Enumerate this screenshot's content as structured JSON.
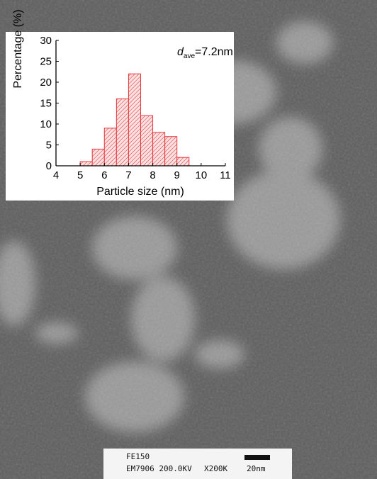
{
  "chart_data": {
    "type": "histogram",
    "bins": [
      5,
      5.5,
      6,
      6.5,
      7,
      7.5,
      8,
      8.5,
      9,
      9.5
    ],
    "values": [
      1,
      4,
      9,
      16,
      22,
      12,
      8,
      7,
      2
    ],
    "color": "#e8383d",
    "xlabel": "Particle size (nm)",
    "ylabel": "Percentage (%)",
    "xlim": [
      4,
      11
    ],
    "xticks": [
      4,
      5,
      6,
      7,
      8,
      9,
      10,
      11
    ],
    "ylim": [
      0,
      30
    ],
    "yticks": [
      0,
      5,
      10,
      15,
      20,
      25,
      30
    ],
    "annotation": {
      "symbol": "d",
      "subscript": "ave",
      "text": "=7.2nm"
    }
  },
  "image_label": {
    "line1": "FE150",
    "line2": [
      "EM7906 200.0KV",
      "X200K",
      "20nm"
    ]
  }
}
